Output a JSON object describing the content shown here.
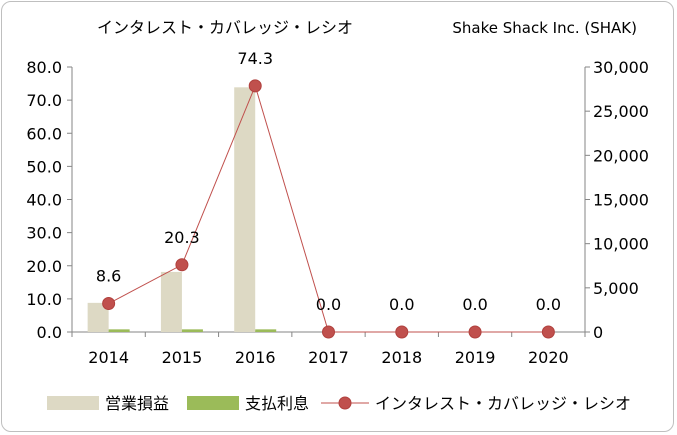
{
  "chart_data": {
    "type": "bar",
    "title": "インタレスト・カバレッジ・レシオ",
    "company": "Shake Shack Inc. (SHAK)",
    "categories": [
      "2014",
      "2015",
      "2016",
      "2017",
      "2018",
      "2019",
      "2020"
    ],
    "left_axis": {
      "ylim": [
        0,
        80
      ],
      "ticks": [
        "0.0",
        "10.0",
        "20.0",
        "30.0",
        "40.0",
        "50.0",
        "60.0",
        "70.0",
        "80.0"
      ]
    },
    "right_axis": {
      "ylim": [
        0,
        30000
      ],
      "ticks": [
        "0",
        "5,000",
        "10,000",
        "15,000",
        "20,000",
        "25,000",
        "30,000"
      ]
    },
    "series": [
      {
        "name": "営業損益",
        "type": "bar",
        "axis": "right",
        "color": "#ddd9c4",
        "values": [
          3300,
          6800,
          27700,
          0,
          0,
          0,
          0
        ]
      },
      {
        "name": "支払利息",
        "type": "bar",
        "axis": "right",
        "color": "#9bbb59",
        "values": [
          300,
          300,
          300,
          0,
          0,
          0,
          0
        ]
      },
      {
        "name": "インタレスト・カバレッジ・レシオ",
        "type": "line",
        "axis": "left",
        "color": "#c0504d",
        "values": [
          8.6,
          20.3,
          74.3,
          0.0,
          0.0,
          0.0,
          0.0
        ],
        "labels": [
          "8.6",
          "20.3",
          "74.3",
          "0.0",
          "0.0",
          "0.0",
          "0.0"
        ]
      }
    ],
    "legend_position": "bottom",
    "grid": false
  }
}
